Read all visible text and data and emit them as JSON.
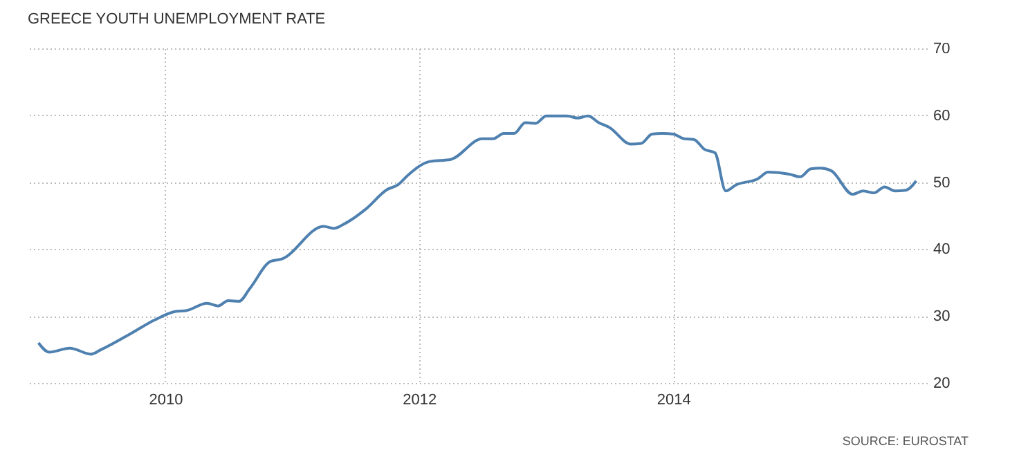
{
  "chart_data": {
    "type": "line",
    "title": "GREECE YOUTH UNEMPLOYMENT RATE",
    "annotations": [
      "SOURCE: EUROSTAT"
    ],
    "x": [
      "2009-01",
      "2009-02",
      "2009-04",
      "2009-06",
      "2009-07",
      "2009-10",
      "2009-12",
      "2010-02",
      "2010-03",
      "2010-05",
      "2010-06",
      "2010-07",
      "2010-08",
      "2010-09",
      "2010-11",
      "2010-12",
      "2011-04",
      "2011-05",
      "2011-06",
      "2011-08",
      "2011-10",
      "2011-11",
      "2011-12",
      "2012-02",
      "2012-04",
      "2012-07",
      "2012-08",
      "2012-09",
      "2012-10",
      "2012-11",
      "2012-12",
      "2013-01",
      "2013-03",
      "2013-04",
      "2013-05",
      "2013-06",
      "2013-07",
      "2013-09",
      "2013-10",
      "2013-11",
      "2013-12",
      "2014-01",
      "2014-02",
      "2014-03",
      "2014-04",
      "2014-05",
      "2014-06",
      "2014-07",
      "2014-09",
      "2014-10",
      "2014-12",
      "2015-01",
      "2015-02",
      "2015-03",
      "2015-04",
      "2015-06",
      "2015-07",
      "2015-08",
      "2015-09",
      "2015-10",
      "2015-11",
      "2015-12"
    ],
    "series": [
      {
        "color": "#4f81b0",
        "values": [
          26.0,
          24.6,
          25.2,
          24.3,
          25.0,
          27.6,
          29.4,
          30.7,
          30.8,
          31.9,
          31.5,
          32.3,
          32.2,
          34.1,
          38.2,
          38.5,
          43.4,
          43.1,
          43.8,
          46.0,
          48.9,
          49.6,
          51.1,
          53.1,
          53.4,
          56.5,
          56.5,
          57.3,
          57.3,
          58.9,
          58.8,
          59.9,
          59.9,
          59.6,
          59.9,
          58.9,
          58.2,
          55.7,
          55.8,
          57.2,
          57.3,
          57.2,
          56.5,
          56.4,
          54.9,
          54.4,
          48.7,
          49.6,
          50.5,
          51.5,
          51.2,
          50.8,
          52.0,
          52.1,
          51.7,
          48.2,
          48.7,
          48.4,
          49.3,
          48.7,
          48.8,
          50.2
        ]
      }
    ],
    "xlim": [
      "2008-12",
      "2016-01"
    ],
    "xticks": [
      {
        "value": "2010",
        "label": "2010"
      },
      {
        "value": "2012",
        "label": "2012"
      },
      {
        "value": "2014",
        "label": "2014"
      }
    ],
    "ylim": [
      20,
      70
    ],
    "yticks": [
      20,
      30,
      40,
      50,
      60,
      70
    ],
    "grid": true,
    "marker": "none",
    "line_style": "solid"
  }
}
